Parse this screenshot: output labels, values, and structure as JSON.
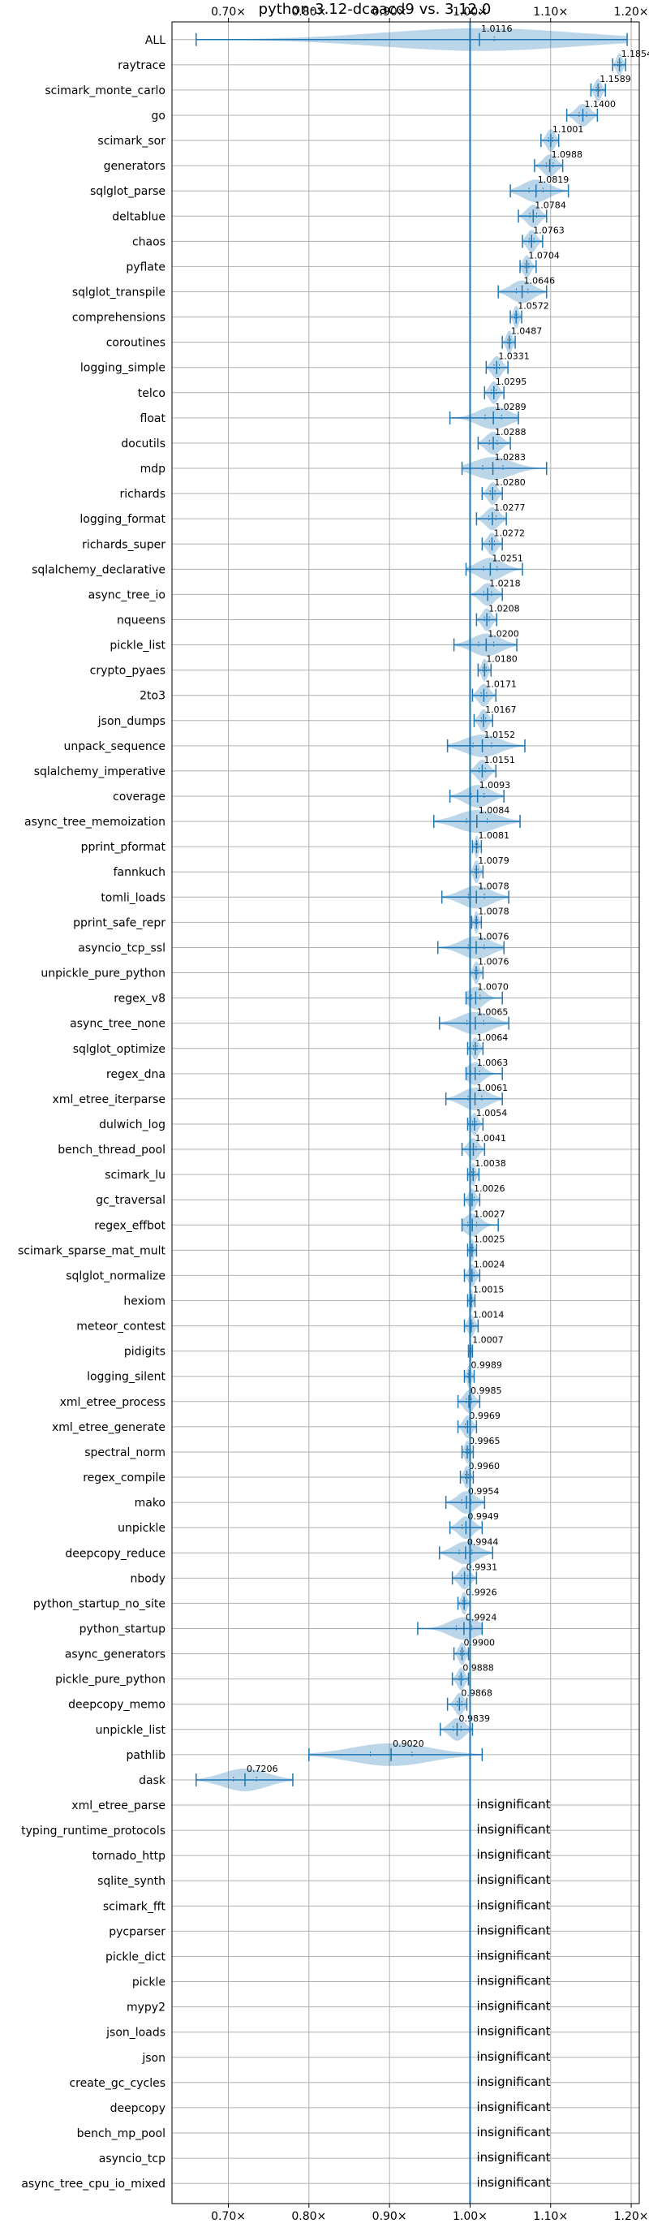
{
  "chart_data": {
    "type": "violin",
    "title": "python-3.12-dcaacd9 vs. 3.12.0",
    "xlim": [
      0.63,
      1.21
    ],
    "xticks": [
      0.7,
      0.8,
      0.9,
      1.0,
      1.1,
      1.2
    ],
    "xtick_labels": [
      "0.70×",
      "0.80×",
      "0.90×",
      "1.00×",
      "1.10×",
      "1.20×"
    ],
    "grid": true,
    "reference_line": 1.0,
    "colors": {
      "violin": "#1f77b4",
      "line": "#1f77b4",
      "grid": "#b0b0b0"
    },
    "insignificant_text": "insignificant",
    "benchmarks": [
      {
        "name": "ALL",
        "mean": 1.0116,
        "label": "1.0116",
        "min": 0.66,
        "max": 1.195,
        "q1": 1.0,
        "q3": 1.03
      },
      {
        "name": "raytrace",
        "mean": 1.1854,
        "label": "1.1854",
        "min": 1.177,
        "max": 1.193
      },
      {
        "name": "scimark_monte_carlo",
        "mean": 1.1589,
        "label": "1.1589",
        "min": 1.15,
        "max": 1.168
      },
      {
        "name": "go",
        "mean": 1.14,
        "label": "1.1400",
        "min": 1.12,
        "max": 1.158
      },
      {
        "name": "scimark_sor",
        "mean": 1.1001,
        "label": "1.1001",
        "min": 1.088,
        "max": 1.11
      },
      {
        "name": "generators",
        "mean": 1.0988,
        "label": "1.0988",
        "min": 1.08,
        "max": 1.115
      },
      {
        "name": "sqlglot_parse",
        "mean": 1.0819,
        "label": "1.0819",
        "min": 1.05,
        "max": 1.122
      },
      {
        "name": "deltablue",
        "mean": 1.0784,
        "label": "1.0784",
        "min": 1.06,
        "max": 1.095
      },
      {
        "name": "chaos",
        "mean": 1.0763,
        "label": "1.0763",
        "min": 1.065,
        "max": 1.09
      },
      {
        "name": "pyflate",
        "mean": 1.0704,
        "label": "1.0704",
        "min": 1.062,
        "max": 1.082
      },
      {
        "name": "sqlglot_transpile",
        "mean": 1.0646,
        "label": "1.0646",
        "min": 1.035,
        "max": 1.095
      },
      {
        "name": "comprehensions",
        "mean": 1.0572,
        "label": "1.0572",
        "min": 1.05,
        "max": 1.064
      },
      {
        "name": "coroutines",
        "mean": 1.0487,
        "label": "1.0487",
        "min": 1.04,
        "max": 1.056
      },
      {
        "name": "logging_simple",
        "mean": 1.0331,
        "label": "1.0331",
        "min": 1.02,
        "max": 1.047
      },
      {
        "name": "telco",
        "mean": 1.0295,
        "label": "1.0295",
        "min": 1.018,
        "max": 1.042
      },
      {
        "name": "float",
        "mean": 1.0289,
        "label": "1.0289",
        "min": 0.975,
        "max": 1.06
      },
      {
        "name": "docutils",
        "mean": 1.0288,
        "label": "1.0288",
        "min": 1.01,
        "max": 1.05
      },
      {
        "name": "mdp",
        "mean": 1.0283,
        "label": "1.0283",
        "min": 0.99,
        "max": 1.095
      },
      {
        "name": "richards",
        "mean": 1.028,
        "label": "1.0280",
        "min": 1.015,
        "max": 1.04
      },
      {
        "name": "logging_format",
        "mean": 1.0277,
        "label": "1.0277",
        "min": 1.008,
        "max": 1.045
      },
      {
        "name": "richards_super",
        "mean": 1.0272,
        "label": "1.0272",
        "min": 1.015,
        "max": 1.04
      },
      {
        "name": "sqlalchemy_declarative",
        "mean": 1.0251,
        "label": "1.0251",
        "min": 0.995,
        "max": 1.065
      },
      {
        "name": "async_tree_io",
        "mean": 1.0218,
        "label": "1.0218",
        "min": 1.0,
        "max": 1.04
      },
      {
        "name": "nqueens",
        "mean": 1.0208,
        "label": "1.0208",
        "min": 1.008,
        "max": 1.033
      },
      {
        "name": "pickle_list",
        "mean": 1.02,
        "label": "1.0200",
        "min": 0.98,
        "max": 1.058
      },
      {
        "name": "crypto_pyaes",
        "mean": 1.018,
        "label": "1.0180",
        "min": 1.01,
        "max": 1.026
      },
      {
        "name": "2to3",
        "mean": 1.0171,
        "label": "1.0171",
        "min": 1.003,
        "max": 1.032
      },
      {
        "name": "json_dumps",
        "mean": 1.0167,
        "label": "1.0167",
        "min": 1.005,
        "max": 1.028
      },
      {
        "name": "unpack_sequence",
        "mean": 1.0152,
        "label": "1.0152",
        "min": 0.972,
        "max": 1.068
      },
      {
        "name": "sqlalchemy_imperative",
        "mean": 1.0151,
        "label": "1.0151",
        "min": 1.0,
        "max": 1.032
      },
      {
        "name": "coverage",
        "mean": 1.0093,
        "label": "1.0093",
        "min": 0.975,
        "max": 1.042
      },
      {
        "name": "async_tree_memoization",
        "mean": 1.0084,
        "label": "1.0084",
        "min": 0.955,
        "max": 1.062
      },
      {
        "name": "pprint_pformat",
        "mean": 1.0081,
        "label": "1.0081",
        "min": 1.003,
        "max": 1.014
      },
      {
        "name": "fannkuch",
        "mean": 1.0079,
        "label": "1.0079",
        "min": 1.0,
        "max": 1.016
      },
      {
        "name": "tomli_loads",
        "mean": 1.0078,
        "label": "1.0078",
        "min": 0.965,
        "max": 1.048
      },
      {
        "name": "pprint_safe_repr",
        "mean": 1.0078,
        "label": "1.0078",
        "min": 1.002,
        "max": 1.014
      },
      {
        "name": "asyncio_tcp_ssl",
        "mean": 1.0076,
        "label": "1.0076",
        "min": 0.96,
        "max": 1.042
      },
      {
        "name": "unpickle_pure_python",
        "mean": 1.0076,
        "label": "1.0076",
        "min": 1.0,
        "max": 1.016
      },
      {
        "name": "regex_v8",
        "mean": 1.007,
        "label": "1.0070",
        "min": 0.995,
        "max": 1.04
      },
      {
        "name": "async_tree_none",
        "mean": 1.0065,
        "label": "1.0065",
        "min": 0.962,
        "max": 1.048
      },
      {
        "name": "sqlglot_optimize",
        "mean": 1.0064,
        "label": "1.0064",
        "min": 0.997,
        "max": 1.016
      },
      {
        "name": "regex_dna",
        "mean": 1.0063,
        "label": "1.0063",
        "min": 0.995,
        "max": 1.04
      },
      {
        "name": "xml_etree_iterparse",
        "mean": 1.0061,
        "label": "1.0061",
        "min": 0.97,
        "max": 1.04
      },
      {
        "name": "dulwich_log",
        "mean": 1.0054,
        "label": "1.0054",
        "min": 0.997,
        "max": 1.016
      },
      {
        "name": "bench_thread_pool",
        "mean": 1.0041,
        "label": "1.0041",
        "min": 0.99,
        "max": 1.018
      },
      {
        "name": "scimark_lu",
        "mean": 1.0038,
        "label": "1.0038",
        "min": 0.997,
        "max": 1.011
      },
      {
        "name": "gc_traversal",
        "mean": 1.0026,
        "label": "1.0026",
        "min": 0.993,
        "max": 1.012
      },
      {
        "name": "regex_effbot",
        "mean": 1.0027,
        "label": "1.0027",
        "min": 0.99,
        "max": 1.035
      },
      {
        "name": "scimark_sparse_mat_mult",
        "mean": 1.0025,
        "label": "1.0025",
        "min": 0.997,
        "max": 1.008
      },
      {
        "name": "sqlglot_normalize",
        "mean": 1.0024,
        "label": "1.0024",
        "min": 0.993,
        "max": 1.012
      },
      {
        "name": "hexiom",
        "mean": 1.0015,
        "label": "1.0015",
        "min": 0.997,
        "max": 1.006
      },
      {
        "name": "meteor_contest",
        "mean": 1.0014,
        "label": "1.0014",
        "min": 0.993,
        "max": 1.01
      },
      {
        "name": "pidigits",
        "mean": 1.0007,
        "label": "1.0007",
        "min": 0.998,
        "max": 1.003
      },
      {
        "name": "logging_silent",
        "mean": 0.9989,
        "label": "0.9989",
        "min": 0.993,
        "max": 1.005
      },
      {
        "name": "xml_etree_process",
        "mean": 0.9985,
        "label": "0.9985",
        "min": 0.985,
        "max": 1.012
      },
      {
        "name": "xml_etree_generate",
        "mean": 0.9969,
        "label": "0.9969",
        "min": 0.985,
        "max": 1.008
      },
      {
        "name": "spectral_norm",
        "mean": 0.9965,
        "label": "0.9965",
        "min": 0.99,
        "max": 1.004
      },
      {
        "name": "regex_compile",
        "mean": 0.996,
        "label": "0.9960",
        "min": 0.988,
        "max": 1.004
      },
      {
        "name": "mako",
        "mean": 0.9954,
        "label": "0.9954",
        "min": 0.97,
        "max": 1.018
      },
      {
        "name": "unpickle",
        "mean": 0.9949,
        "label": "0.9949",
        "min": 0.975,
        "max": 1.015
      },
      {
        "name": "deepcopy_reduce",
        "mean": 0.9944,
        "label": "0.9944",
        "min": 0.962,
        "max": 1.028
      },
      {
        "name": "nbody",
        "mean": 0.9931,
        "label": "0.9931",
        "min": 0.978,
        "max": 1.008
      },
      {
        "name": "python_startup_no_site",
        "mean": 0.9926,
        "label": "0.9926",
        "min": 0.985,
        "max": 1.0
      },
      {
        "name": "python_startup",
        "mean": 0.9924,
        "label": "0.9924",
        "min": 0.935,
        "max": 1.015
      },
      {
        "name": "async_generators",
        "mean": 0.99,
        "label": "0.9900",
        "min": 0.98,
        "max": 0.998
      },
      {
        "name": "pickle_pure_python",
        "mean": 0.9888,
        "label": "0.9888",
        "min": 0.978,
        "max": 0.998
      },
      {
        "name": "deepcopy_memo",
        "mean": 0.9868,
        "label": "0.9868",
        "min": 0.972,
        "max": 0.996
      },
      {
        "name": "unpickle_list",
        "mean": 0.9839,
        "label": "0.9839",
        "min": 0.963,
        "max": 1.003
      },
      {
        "name": "pathlib",
        "mean": 0.902,
        "label": "0.9020",
        "min": 0.8,
        "max": 1.015
      },
      {
        "name": "dask",
        "mean": 0.7206,
        "label": "0.7206",
        "min": 0.66,
        "max": 0.78
      },
      {
        "name": "xml_etree_parse",
        "insignificant": true
      },
      {
        "name": "typing_runtime_protocols",
        "insignificant": true
      },
      {
        "name": "tornado_http",
        "insignificant": true
      },
      {
        "name": "sqlite_synth",
        "insignificant": true
      },
      {
        "name": "scimark_fft",
        "insignificant": true
      },
      {
        "name": "pycparser",
        "insignificant": true
      },
      {
        "name": "pickle_dict",
        "insignificant": true
      },
      {
        "name": "pickle",
        "insignificant": true
      },
      {
        "name": "mypy2",
        "insignificant": true
      },
      {
        "name": "json_loads",
        "insignificant": true
      },
      {
        "name": "json",
        "insignificant": true
      },
      {
        "name": "create_gc_cycles",
        "insignificant": true
      },
      {
        "name": "deepcopy",
        "insignificant": true
      },
      {
        "name": "bench_mp_pool",
        "insignificant": true
      },
      {
        "name": "asyncio_tcp",
        "insignificant": true
      },
      {
        "name": "async_tree_cpu_io_mixed",
        "insignificant": true
      }
    ]
  }
}
